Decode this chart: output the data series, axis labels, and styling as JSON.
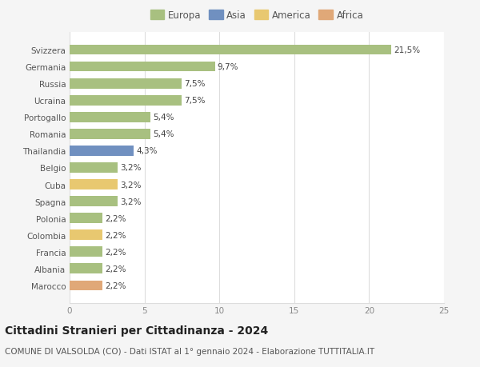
{
  "countries": [
    "Svizzera",
    "Germania",
    "Russia",
    "Ucraina",
    "Portogallo",
    "Romania",
    "Thailandia",
    "Belgio",
    "Cuba",
    "Spagna",
    "Polonia",
    "Colombia",
    "Francia",
    "Albania",
    "Marocco"
  ],
  "values": [
    21.5,
    9.7,
    7.5,
    7.5,
    5.4,
    5.4,
    4.3,
    3.2,
    3.2,
    3.2,
    2.2,
    2.2,
    2.2,
    2.2,
    2.2
  ],
  "labels": [
    "21,5%",
    "9,7%",
    "7,5%",
    "7,5%",
    "5,4%",
    "5,4%",
    "4,3%",
    "3,2%",
    "3,2%",
    "3,2%",
    "2,2%",
    "2,2%",
    "2,2%",
    "2,2%",
    "2,2%"
  ],
  "continents": [
    "Europa",
    "Europa",
    "Europa",
    "Europa",
    "Europa",
    "Europa",
    "Asia",
    "Europa",
    "America",
    "Europa",
    "Europa",
    "America",
    "Europa",
    "Europa",
    "Africa"
  ],
  "colors": {
    "Europa": "#a8c080",
    "Asia": "#7090c0",
    "America": "#e8c870",
    "Africa": "#e0a878"
  },
  "xlim": [
    0,
    25
  ],
  "xticks": [
    0,
    5,
    10,
    15,
    20,
    25
  ],
  "title": "Cittadini Stranieri per Cittadinanza - 2024",
  "subtitle": "COMUNE DI VALSOLDA (CO) - Dati ISTAT al 1° gennaio 2024 - Elaborazione TUTTITALIA.IT",
  "bg_color": "#f5f5f5",
  "plot_bg_color": "#ffffff",
  "grid_color": "#dddddd",
  "bar_height": 0.6,
  "label_fontsize": 7.5,
  "tick_fontsize": 7.5,
  "title_fontsize": 10,
  "subtitle_fontsize": 7.5,
  "legend_fontsize": 8.5
}
